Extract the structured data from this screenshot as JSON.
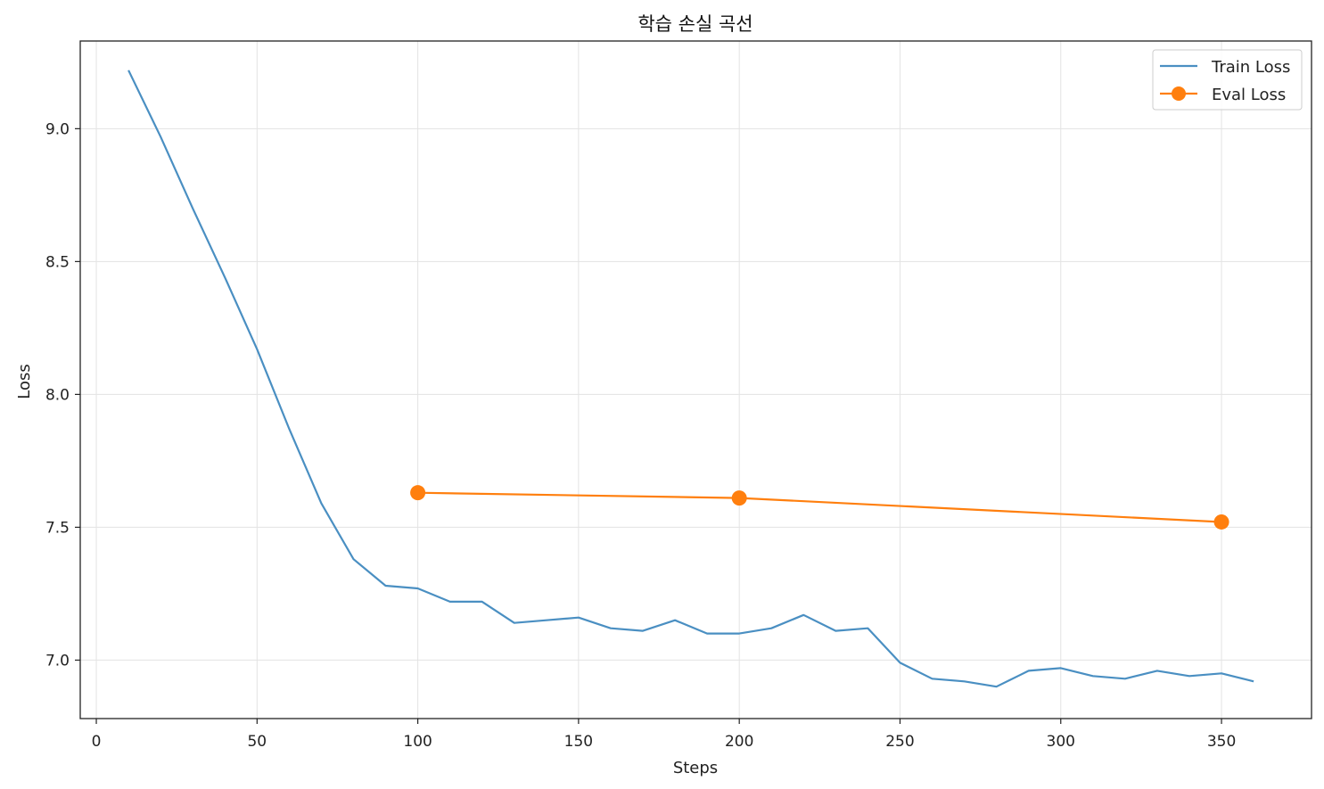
{
  "chart_data": {
    "type": "line",
    "title": "학습 손실 곡선",
    "xlabel": "Steps",
    "ylabel": "Loss",
    "xlim": [
      -5,
      378
    ],
    "ylim": [
      6.78,
      9.33
    ],
    "xticks": [
      0,
      50,
      100,
      150,
      200,
      250,
      300,
      350
    ],
    "yticks": [
      7.0,
      7.5,
      8.0,
      8.5,
      9.0
    ],
    "grid": true,
    "legend": "top-right",
    "series": [
      {
        "name": "Train Loss",
        "color": "#4a8fc2",
        "marker": false,
        "x": [
          10,
          20,
          30,
          40,
          50,
          60,
          70,
          80,
          90,
          100,
          110,
          120,
          130,
          140,
          150,
          160,
          170,
          180,
          190,
          200,
          210,
          220,
          230,
          240,
          250,
          260,
          270,
          280,
          290,
          300,
          310,
          320,
          330,
          340,
          350,
          360
        ],
        "y": [
          9.22,
          8.97,
          8.7,
          8.44,
          8.17,
          7.87,
          7.59,
          7.38,
          7.28,
          7.27,
          7.22,
          7.22,
          7.14,
          7.15,
          7.16,
          7.12,
          7.11,
          7.15,
          7.1,
          7.1,
          7.12,
          7.17,
          7.11,
          7.12,
          6.99,
          6.93,
          6.92,
          6.9,
          6.96,
          6.97,
          6.94,
          6.93,
          6.96,
          6.94,
          6.95,
          6.92
        ]
      },
      {
        "name": "Eval Loss",
        "color": "#ff7f0e",
        "marker": true,
        "x": [
          100,
          200,
          350
        ],
        "y": [
          7.63,
          7.61,
          7.52
        ]
      }
    ]
  }
}
